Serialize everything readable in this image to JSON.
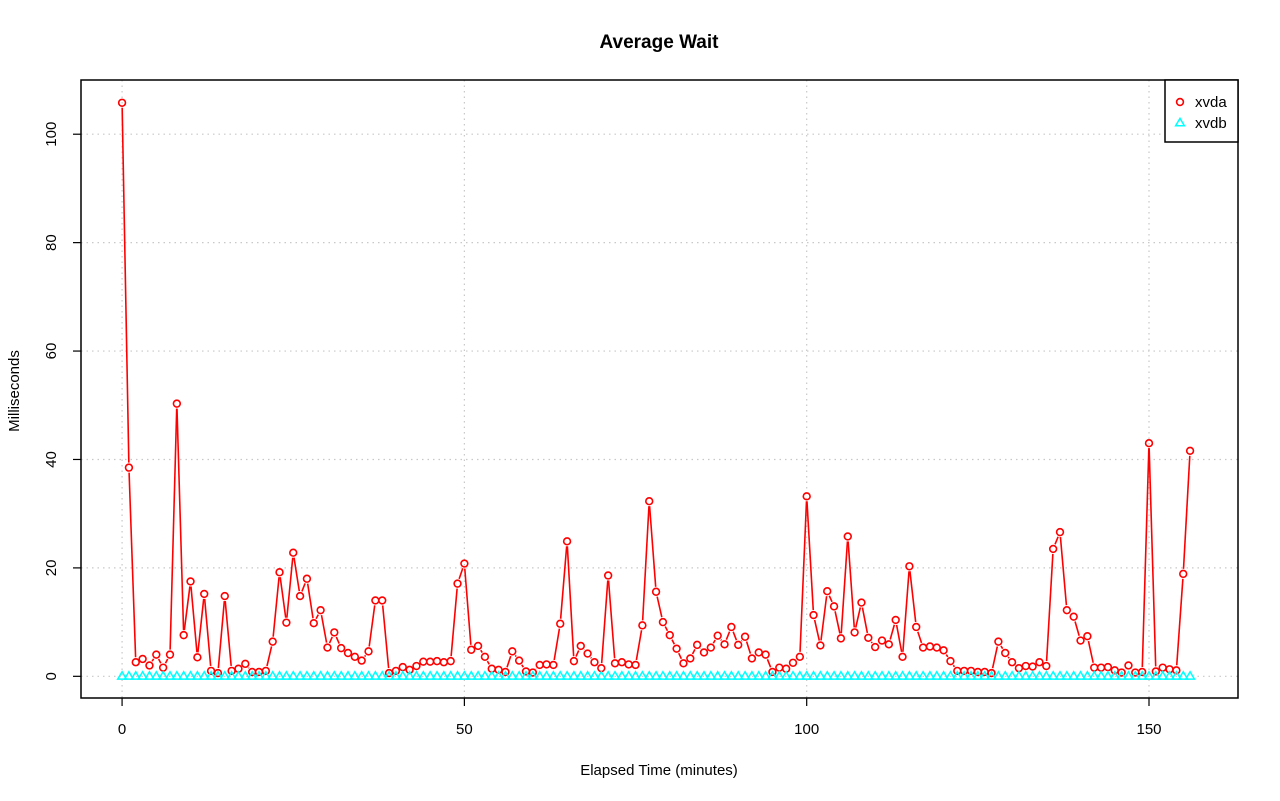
{
  "chart_data": {
    "type": "line",
    "title": "Average Wait",
    "xlabel": "Elapsed Time (minutes)",
    "ylabel": "Milliseconds",
    "xlim": [
      -6,
      163
    ],
    "ylim": [
      -4,
      110
    ],
    "x_ticks": [
      "0",
      "50",
      "100",
      "150"
    ],
    "y_ticks": [
      "0",
      "20",
      "40",
      "60",
      "80",
      "100"
    ],
    "grid": true,
    "legend_position": "top-right",
    "series": [
      {
        "name": "xvda",
        "color": "#ff0000",
        "marker": "circle",
        "values": [
          105.8,
          38.5,
          2.6,
          3.2,
          2.0,
          4.0,
          1.6,
          4.0,
          50.3,
          7.6,
          17.5,
          3.5,
          15.2,
          1.0,
          0.6,
          14.8,
          1.0,
          1.4,
          2.3,
          0.8,
          0.8,
          1.0,
          6.4,
          19.2,
          9.9,
          22.8,
          14.8,
          18.0,
          9.8,
          12.2,
          5.3,
          8.1,
          5.2,
          4.3,
          3.6,
          2.9,
          4.6,
          14.0,
          14.0,
          0.6,
          1.0,
          1.7,
          1.2,
          1.9,
          2.7,
          2.7,
          2.8,
          2.6,
          2.8,
          17.1,
          20.8,
          4.9,
          5.6,
          3.6,
          1.4,
          1.2,
          0.8,
          4.6,
          2.9,
          0.9,
          0.7,
          2.1,
          2.2,
          2.1,
          9.7,
          24.9,
          2.8,
          5.6,
          4.2,
          2.6,
          1.5,
          18.6,
          2.4,
          2.6,
          2.2,
          2.1,
          9.4,
          32.3,
          15.6,
          10.0,
          7.6,
          5.1,
          2.4,
          3.3,
          5.8,
          4.4,
          5.3,
          7.5,
          5.9,
          9.1,
          5.8,
          7.3,
          3.3,
          4.4,
          4.0,
          0.8,
          1.6,
          1.4,
          2.5,
          3.6,
          33.2,
          11.3,
          5.7,
          15.7,
          12.9,
          7.0,
          25.8,
          8.1,
          13.6,
          7.1,
          5.4,
          6.6,
          5.9,
          10.4,
          3.6,
          20.3,
          9.1,
          5.3,
          5.5,
          5.3,
          4.8,
          2.8,
          1.0,
          1.0,
          1.0,
          0.8,
          0.8,
          0.6,
          6.4,
          4.3,
          2.6,
          1.5,
          1.9,
          1.8,
          2.6,
          1.9,
          23.5,
          26.6,
          12.2,
          11.0,
          6.6,
          7.4,
          1.6,
          1.6,
          1.7,
          1.1,
          0.7,
          2.0,
          0.7,
          0.8,
          43.0,
          0.9,
          1.6,
          1.3,
          1.1,
          18.9,
          41.6
        ]
      },
      {
        "name": "xvdb",
        "color": "#00ffff",
        "marker": "triangle",
        "constant": 0,
        "count": 157
      }
    ]
  }
}
